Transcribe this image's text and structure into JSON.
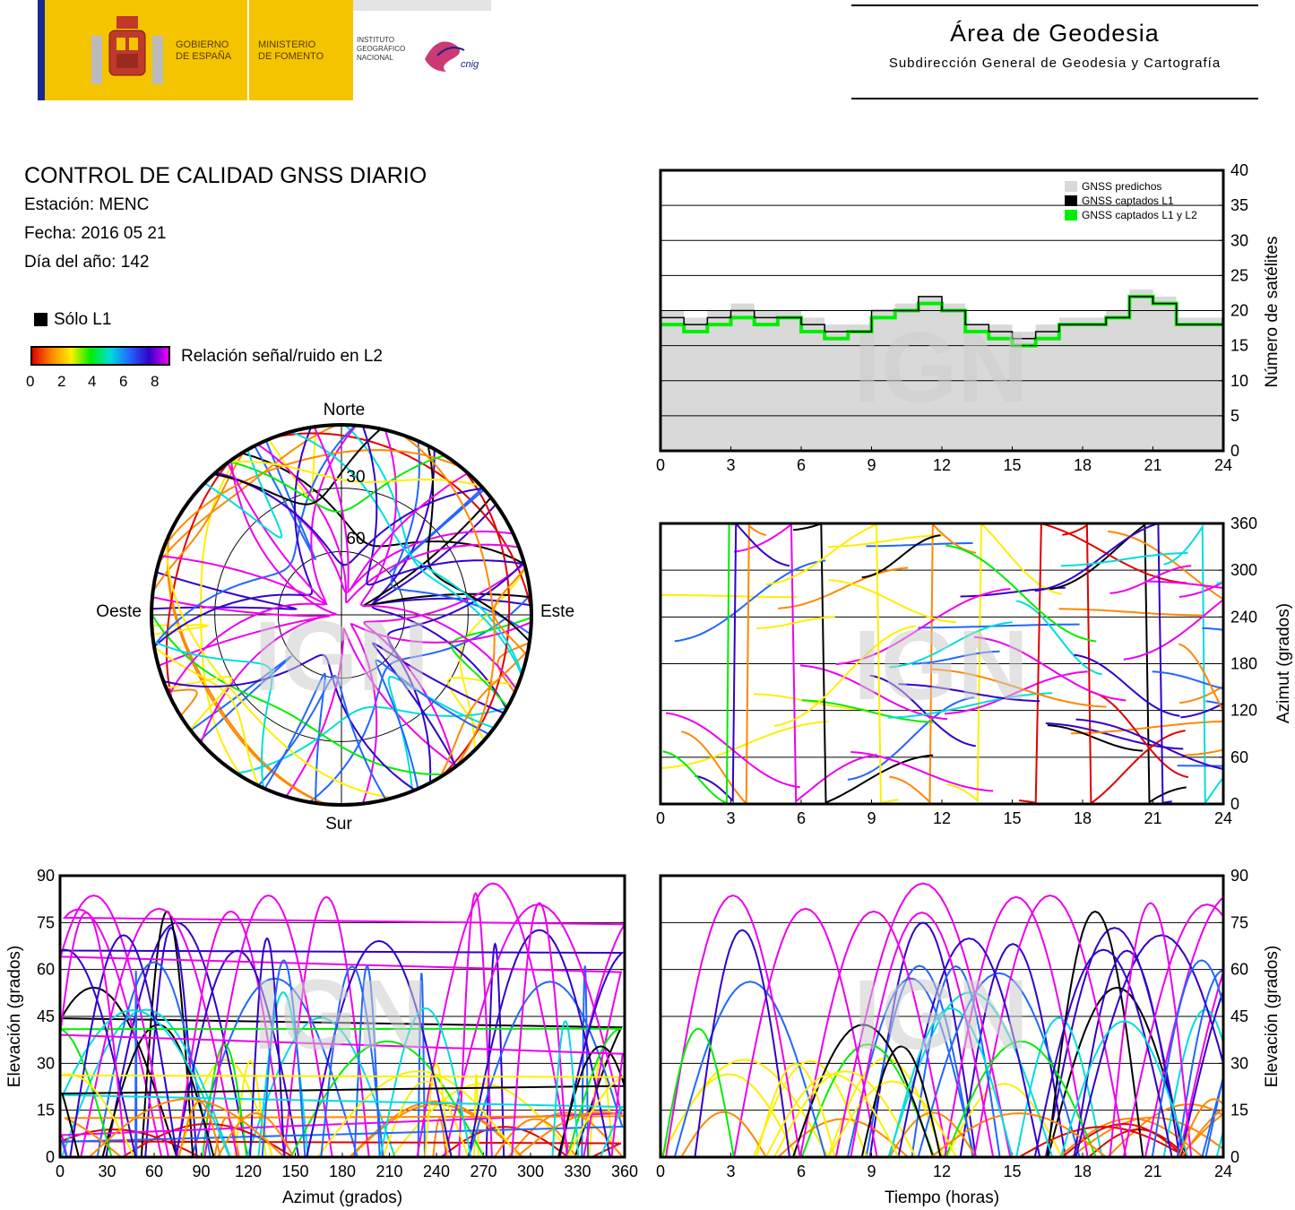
{
  "header": {
    "gov_line1": "GOBIERNO",
    "gov_line2": "DE ESPAÑA",
    "min_line1": "MINISTERIO",
    "min_line2": "DE FOMENTO",
    "inst_line1": "INSTITUTO",
    "inst_line2": "GEOGRÁFICO",
    "inst_line3": "NACIONAL",
    "cnig": "cnig",
    "area_title": "Área de Geodesia",
    "area_subtitle": "Subdirección General de Geodesia y Cartografía"
  },
  "info": {
    "title": "CONTROL DE CALIDAD GNSS DIARIO",
    "station": "Estación: MENC",
    "date": "Fecha: 2016 05 21",
    "doy": "Día del año: 142",
    "only_l1": "Sólo L1",
    "snr_label": "Relación señal/ruido en L2",
    "snr_ticks": [
      "0",
      "2",
      "4",
      "6",
      "8"
    ]
  },
  "watermark": "IGN",
  "colors": {
    "predicted": "#d9d9d9",
    "l1": "#000000",
    "l1l2": "#00ee00",
    "snr_scale": [
      "#e00000",
      "#ff8800",
      "#ffee00",
      "#00ee00",
      "#00dddd",
      "#2266ff",
      "#3300cc",
      "#ee00ee"
    ]
  },
  "chart_data": [
    {
      "type": "area",
      "id": "satellite-count",
      "ylabel": "Número de satélites",
      "xlim": [
        0,
        24
      ],
      "ylim": [
        0,
        40
      ],
      "xticks": [
        0,
        3,
        6,
        9,
        12,
        15,
        18,
        21,
        24
      ],
      "yticks": [
        0,
        5,
        10,
        15,
        20,
        25,
        30,
        35,
        40
      ],
      "grid": "horizontal",
      "legend_position": "top-right",
      "series": [
        {
          "name": "GNSS predichos",
          "x": [
            0,
            1,
            2,
            3,
            4,
            5,
            6,
            7,
            8,
            9,
            10,
            11,
            12,
            13,
            14,
            15,
            16,
            17,
            18,
            19,
            20,
            21,
            22,
            23,
            24
          ],
          "values": [
            20,
            19,
            20,
            21,
            20,
            20,
            19,
            18,
            18,
            20,
            21,
            22,
            21,
            18,
            18,
            17,
            18,
            19,
            19,
            20,
            23,
            22,
            19,
            19,
            19
          ]
        },
        {
          "name": "GNSS captados L1",
          "x": [
            0,
            1,
            2,
            3,
            4,
            5,
            6,
            7,
            8,
            9,
            10,
            11,
            12,
            13,
            14,
            15,
            16,
            17,
            18,
            19,
            20,
            21,
            22,
            23,
            24
          ],
          "values": [
            19,
            18,
            19,
            20,
            19,
            19,
            18,
            17,
            17,
            20,
            20,
            22,
            20,
            18,
            17,
            16,
            17,
            18,
            18,
            19,
            22,
            21,
            18,
            18,
            19
          ]
        },
        {
          "name": "GNSS captados L1 y L2",
          "x": [
            0,
            1,
            2,
            3,
            4,
            5,
            6,
            7,
            8,
            9,
            10,
            11,
            12,
            13,
            14,
            15,
            16,
            17,
            18,
            19,
            20,
            21,
            22,
            23,
            24
          ],
          "values": [
            18,
            17,
            18,
            19,
            18,
            19,
            17,
            16,
            17,
            19,
            20,
            21,
            20,
            17,
            16,
            15,
            16,
            18,
            18,
            19,
            22,
            21,
            18,
            18,
            19
          ]
        }
      ]
    },
    {
      "type": "scatter",
      "id": "skyplot",
      "north": "Norte",
      "south": "Sur",
      "east": "Este",
      "west": "Oeste",
      "ring_labels": [
        "30",
        "60"
      ]
    },
    {
      "type": "scatter",
      "id": "azimuth-vs-time",
      "ylabel": "Azimut (grados)",
      "xlim": [
        0,
        24
      ],
      "ylim": [
        0,
        360
      ],
      "xticks": [
        0,
        3,
        6,
        9,
        12,
        15,
        18,
        21,
        24
      ],
      "yticks": [
        0,
        60,
        120,
        180,
        240,
        300,
        360
      ],
      "grid": "horizontal"
    },
    {
      "type": "scatter",
      "id": "elevation-vs-azimuth",
      "xlabel": "Azimut (grados)",
      "ylabel": "Elevación (grados)",
      "xlim": [
        0,
        360
      ],
      "ylim": [
        0,
        90
      ],
      "xticks": [
        0,
        30,
        60,
        90,
        120,
        150,
        180,
        210,
        240,
        270,
        300,
        330,
        360
      ],
      "yticks": [
        0,
        15,
        30,
        45,
        60,
        75,
        90
      ],
      "grid": "horizontal"
    },
    {
      "type": "scatter",
      "id": "elevation-vs-time",
      "xlabel": "Tiempo (horas)",
      "ylabel": "Elevación (grados)",
      "xlim": [
        0,
        24
      ],
      "ylim": [
        0,
        90
      ],
      "xticks": [
        0,
        3,
        6,
        9,
        12,
        15,
        18,
        21,
        24
      ],
      "yticks": [
        0,
        15,
        30,
        45,
        60,
        75,
        90
      ],
      "grid": "horizontal"
    }
  ]
}
